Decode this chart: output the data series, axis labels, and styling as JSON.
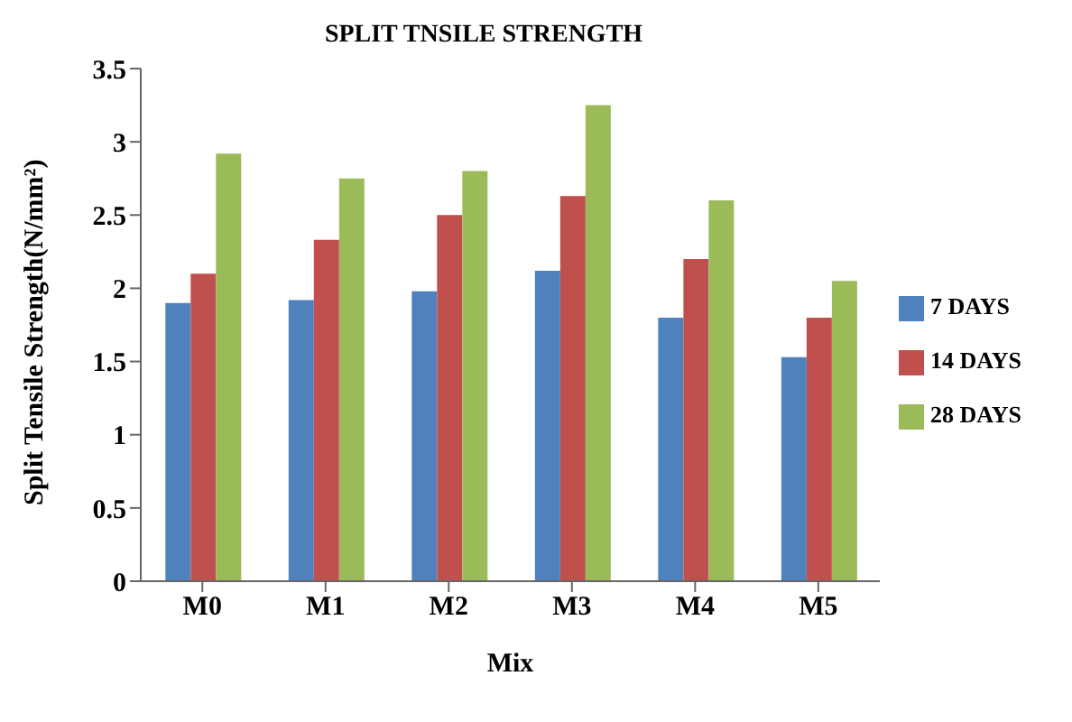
{
  "chart_data": {
    "type": "bar",
    "title": "SPLIT TNSILE STRENGTH",
    "xlabel": "Mix",
    "ylabel": "Split Tensile Strength(N/mm²)",
    "categories": [
      "M0",
      "M1",
      "M2",
      "M3",
      "M4",
      "M5"
    ],
    "series": [
      {
        "name": "7 DAYS",
        "color": "#4f81bd",
        "values": [
          1.9,
          1.92,
          1.98,
          2.12,
          1.8,
          1.53
        ]
      },
      {
        "name": "14 DAYS",
        "color": "#c0504d",
        "values": [
          2.1,
          2.33,
          2.5,
          2.63,
          2.2,
          1.8
        ]
      },
      {
        "name": "28 DAYS",
        "color": "#9bbb59",
        "values": [
          2.92,
          2.75,
          2.8,
          3.25,
          2.6,
          2.05
        ]
      }
    ],
    "ylim": [
      0,
      3.5
    ],
    "yticks": [
      0,
      0.5,
      1,
      1.5,
      2,
      2.5,
      3,
      3.5
    ],
    "grid": false,
    "legend": "right"
  }
}
